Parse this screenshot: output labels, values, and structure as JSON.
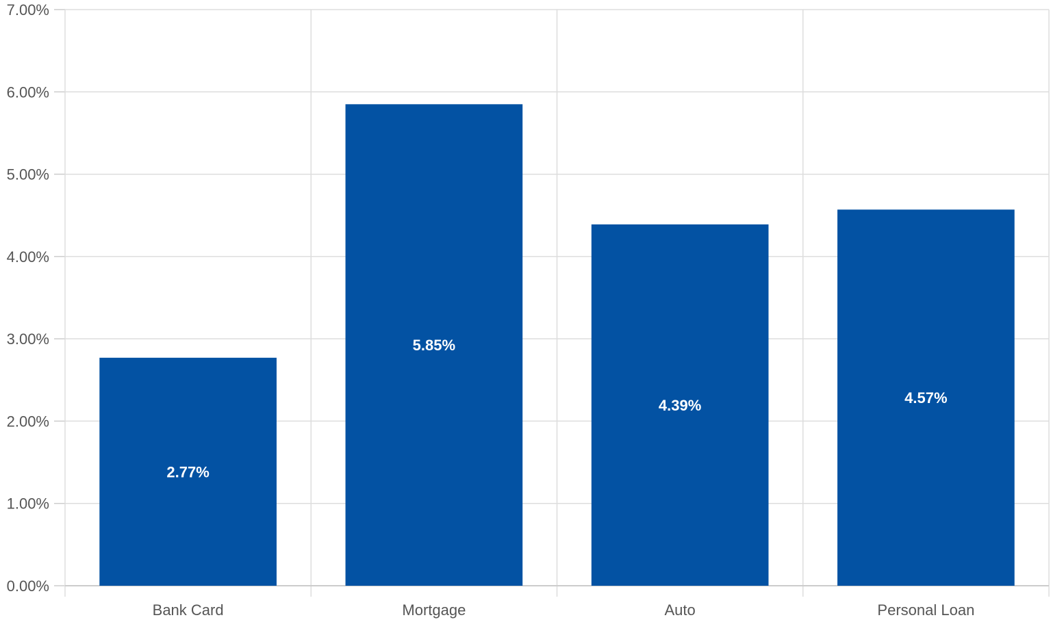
{
  "chart_data": {
    "type": "bar",
    "title": "",
    "xlabel": "",
    "ylabel": "",
    "categories": [
      "Bank Card",
      "Mortgage",
      "Auto",
      "Personal Loan"
    ],
    "values": [
      2.77,
      5.85,
      4.39,
      4.57
    ],
    "data_labels": [
      "2.77%",
      "5.85%",
      "4.39%",
      "4.57%"
    ],
    "ylim": [
      0,
      7
    ],
    "yticks": [
      0,
      1,
      2,
      3,
      4,
      5,
      6,
      7
    ],
    "ytick_labels": [
      "0.00%",
      "1.00%",
      "2.00%",
      "3.00%",
      "4.00%",
      "5.00%",
      "6.00%",
      "7.00%"
    ],
    "grid": true,
    "legend": "none",
    "colors": {
      "bar": "#0352a3",
      "grid": "#dddddd",
      "axis": "#cccccc",
      "tick_text": "#555555",
      "data_label_text": "#ffffff"
    }
  }
}
